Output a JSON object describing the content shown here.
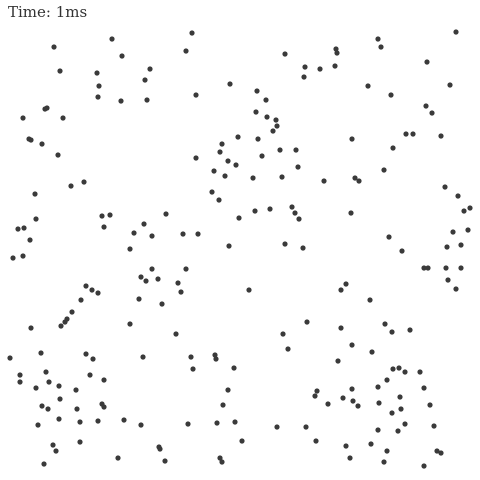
{
  "simulation": {
    "time_label": "Time: 1ms",
    "particle_color": "#3a3a3a",
    "background_color": "#ffffff"
  }
}
